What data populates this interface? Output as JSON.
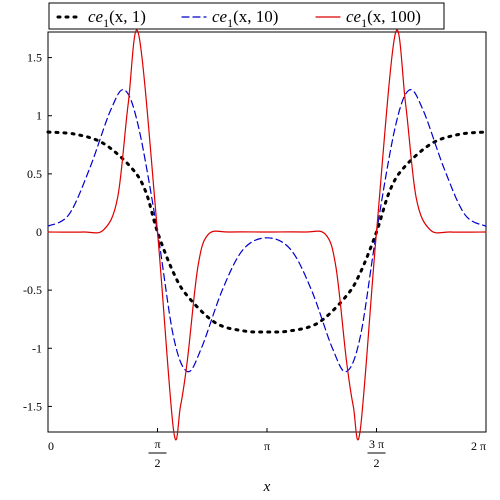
{
  "chart_data": {
    "type": "line",
    "xlabel": "x",
    "ylabel": "",
    "xlim": [
      0,
      6.2832
    ],
    "ylim": [
      -1.72,
      1.72
    ],
    "legend_position": "top",
    "grid": false,
    "x_ticks": [
      {
        "value": 0,
        "label": "0"
      },
      {
        "value": 1.5708,
        "label": "π/2",
        "num": "π",
        "den": "2"
      },
      {
        "value": 3.1416,
        "label": "π"
      },
      {
        "value": 4.7124,
        "label": "3π/2",
        "num": "3 π",
        "den": "2"
      },
      {
        "value": 6.2832,
        "label": "2 π"
      }
    ],
    "y_ticks": [
      {
        "value": 1.5,
        "label": "1.5"
      },
      {
        "value": 1,
        "label": "1"
      },
      {
        "value": 0.5,
        "label": "0.5"
      },
      {
        "value": 0,
        "label": "0"
      },
      {
        "value": -0.5,
        "label": "-0.5"
      },
      {
        "value": -1,
        "label": "-1"
      },
      {
        "value": -1.5,
        "label": "-1.5"
      }
    ],
    "series": [
      {
        "name": "ce1(x, 1)",
        "func": "ce",
        "base": "ce",
        "sub": "1",
        "args": "(x, 1)",
        "color": "#000000",
        "style": "dotted",
        "x": [
          0,
          0.4,
          0.8,
          1.2,
          1.4,
          1.5708,
          1.8,
          2.0,
          2.4,
          2.8,
          3.1416,
          3.48,
          3.88,
          4.28,
          4.48,
          4.7124,
          4.9,
          5.1,
          5.5,
          5.9,
          6.2832
        ],
        "values": [
          0.86,
          0.84,
          0.76,
          0.55,
          0.35,
          0.0,
          -0.35,
          -0.55,
          -0.78,
          -0.85,
          -0.86,
          -0.85,
          -0.78,
          -0.55,
          -0.35,
          0.0,
          0.35,
          0.55,
          0.76,
          0.84,
          0.86
        ]
      },
      {
        "name": "ce1(x, 10)",
        "func": "ce",
        "base": "ce",
        "sub": "1",
        "args": "(x, 10)",
        "color": "#0000cc",
        "style": "dashed",
        "x": [
          0,
          0.3,
          0.6,
          0.9,
          1.1,
          1.3,
          1.5708,
          1.8,
          2.0,
          2.2,
          2.5,
          2.8,
          3.1416,
          3.48,
          3.78,
          4.08,
          4.28,
          4.48,
          4.7124,
          4.98,
          5.18,
          5.38,
          5.68,
          5.98,
          6.2832
        ],
        "values": [
          0.05,
          0.15,
          0.55,
          1.05,
          1.22,
          0.9,
          0.0,
          -0.9,
          -1.2,
          -1.0,
          -0.5,
          -0.15,
          -0.05,
          -0.15,
          -0.5,
          -1.0,
          -1.2,
          -0.9,
          0.0,
          0.9,
          1.22,
          1.05,
          0.55,
          0.15,
          0.05
        ]
      },
      {
        "name": "ce1(x, 100)",
        "func": "ce",
        "base": "ce",
        "sub": "1",
        "args": "(x, 100)",
        "color": "#dd0000",
        "style": "solid",
        "x": [
          0,
          0.5,
          0.8,
          1.0,
          1.15,
          1.3,
          1.5708,
          1.8,
          1.9,
          2.0,
          2.15,
          2.3,
          2.6,
          3.1416,
          3.68,
          3.98,
          4.13,
          4.28,
          4.38,
          4.48,
          4.7124,
          4.98,
          5.13,
          5.28,
          5.48,
          5.78,
          6.2832
        ],
        "values": [
          0.0,
          0.0,
          0.02,
          0.3,
          1.1,
          1.7,
          0.0,
          -1.7,
          -1.5,
          -1.1,
          -0.3,
          -0.02,
          0.0,
          0.0,
          0.0,
          -0.02,
          -0.3,
          -1.1,
          -1.5,
          -1.7,
          0.0,
          1.7,
          1.1,
          0.3,
          0.02,
          0.0,
          0.0
        ]
      }
    ]
  }
}
